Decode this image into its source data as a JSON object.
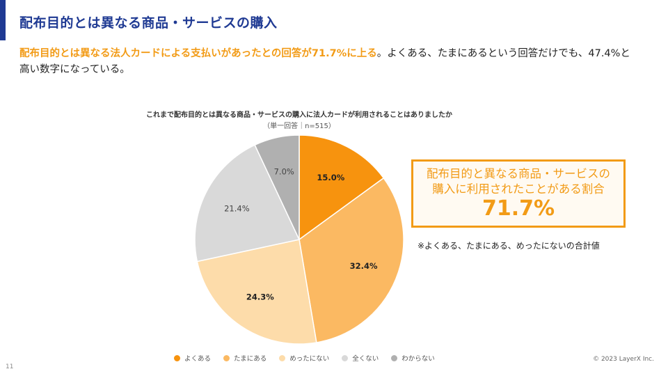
{
  "slide": {
    "title": "配布目的とは異なる商品・サービスの購入",
    "lead_highlight": "配布目的とは異なる法人カードによる支払いがあったとの回答が71.7%に上る",
    "lead_rest": "。よくある、たまにあるという回答だけでも、47.4%と高い数字になっている。",
    "callout_line1": "配布目的と異なる商品・サービスの",
    "callout_line2": "購入に利用されたことがある割合",
    "callout_value": "71.7%",
    "note": "※よくある、たまにある、めったにないの合計値",
    "page_number": "11",
    "copyright": "© 2023 LayerX Inc."
  },
  "chart_data": {
    "type": "pie",
    "title": "これまで配布目的とは異なる商品・サービスの購入に法人カードが利用されることはありましたか",
    "subtitle": "（単一回答｜n=515）",
    "categories": [
      "よくある",
      "たまにある",
      "めったにない",
      "全くない",
      "わからない"
    ],
    "values": [
      15.0,
      32.4,
      24.3,
      21.4,
      7.0
    ],
    "labels": [
      "15.0%",
      "32.4%",
      "24.3%",
      "21.4%",
      "7.0%"
    ],
    "colors": [
      "#f7930e",
      "#fbb962",
      "#fddcaa",
      "#d9d9d9",
      "#b0b0b0"
    ],
    "label_colors": [
      "#222222",
      "#222222",
      "#222222",
      "#444444",
      "#444444"
    ],
    "start": "12 o'clock, clockwise",
    "legend_position": "bottom"
  }
}
